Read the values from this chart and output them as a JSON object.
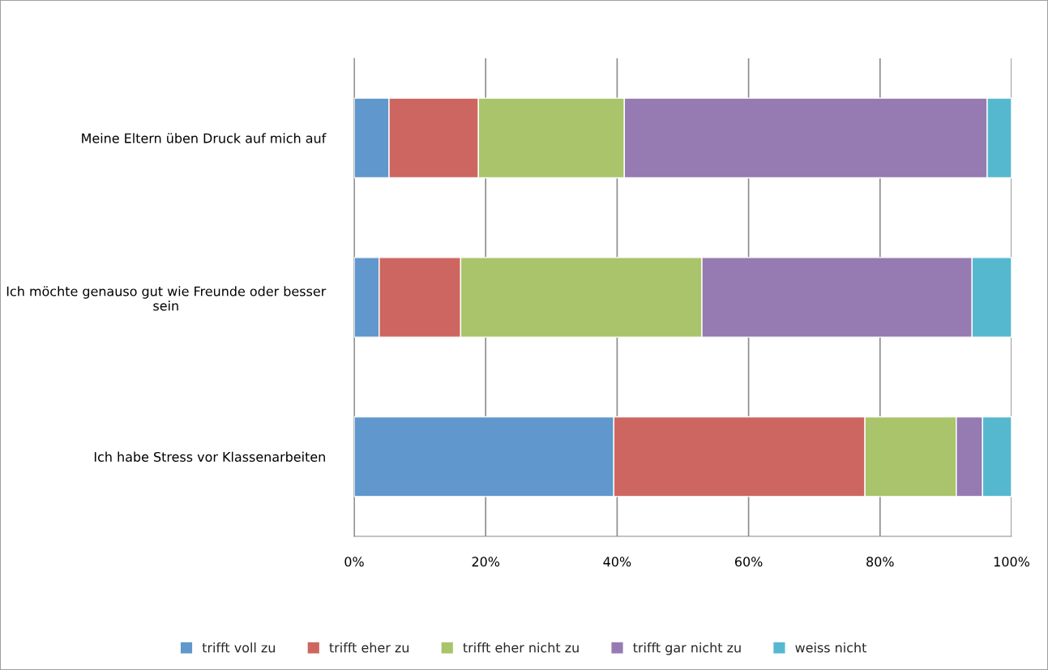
{
  "chart_data": {
    "type": "bar",
    "orientation": "horizontal",
    "stacked": true,
    "categories": [
      "Meine Eltern üben Druck auf mich auf",
      "Ich möchte genauso gut wie Freunde oder besser sein",
      "Ich habe Stress vor Klassenarbeiten"
    ],
    "series": [
      {
        "name": "trifft voll zu",
        "color": "#6097cc",
        "values": [
          5.3,
          3.8,
          39.5
        ]
      },
      {
        "name": "trifft eher zu",
        "color": "#cd6660",
        "values": [
          13.6,
          12.4,
          38.2
        ]
      },
      {
        "name": "trifft eher nicht zu",
        "color": "#a9c46b",
        "values": [
          22.2,
          36.7,
          13.9
        ]
      },
      {
        "name": "trifft gar nicht zu",
        "color": "#957bb1",
        "values": [
          55.2,
          41.1,
          4.0
        ]
      },
      {
        "name": "weiss nicht",
        "color": "#56b8cf",
        "values": [
          3.7,
          6.0,
          4.4
        ]
      }
    ],
    "xlim": [
      0,
      100
    ],
    "xticks": [
      {
        "value": 0,
        "label": "0%"
      },
      {
        "value": 20,
        "label": "20%"
      },
      {
        "value": 40,
        "label": "40%"
      },
      {
        "value": 60,
        "label": "60%"
      },
      {
        "value": 80,
        "label": "80%"
      },
      {
        "value": 100,
        "label": "100%"
      }
    ],
    "grid": "x",
    "legend": "bottom"
  }
}
